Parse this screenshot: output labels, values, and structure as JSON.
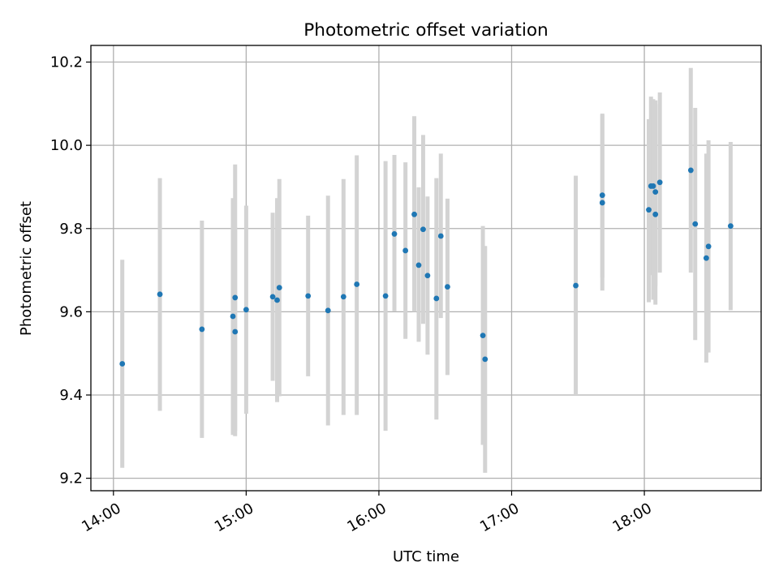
{
  "chart_data": {
    "type": "scatter",
    "title": "Photometric offset variation",
    "xlabel": "UTC time",
    "ylabel": "Photometric offset",
    "x_axis_kind": "time (hours)",
    "xlim": [
      13.83,
      18.88
    ],
    "ylim": [
      9.17,
      10.24
    ],
    "x_ticks": [
      {
        "value": 14,
        "label": "14:00"
      },
      {
        "value": 15,
        "label": "15:00"
      },
      {
        "value": 16,
        "label": "16:00"
      },
      {
        "value": 17,
        "label": "17:00"
      },
      {
        "value": 18,
        "label": "18:00"
      }
    ],
    "y_ticks": [
      {
        "value": 9.2,
        "label": "9.2"
      },
      {
        "value": 9.4,
        "label": "9.4"
      },
      {
        "value": 9.6,
        "label": "9.6"
      },
      {
        "value": 9.8,
        "label": "9.8"
      },
      {
        "value": 10.0,
        "label": "10.0"
      },
      {
        "value": 10.2,
        "label": "10.2"
      }
    ],
    "grid": true,
    "marker_color": "#1f77b4",
    "errorbar_color": "#d3d3d3",
    "series": [
      {
        "points": [
          {
            "x": "14:04",
            "y": 9.475,
            "ylow": 9.225,
            "yhigh": 9.725
          },
          {
            "x": "14:21",
            "y": 9.642,
            "ylow": 9.362,
            "yhigh": 9.921
          },
          {
            "x": "14:40",
            "y": 9.558,
            "ylow": 9.297,
            "yhigh": 9.819
          },
          {
            "x": "14:54",
            "y": 9.589,
            "ylow": 9.304,
            "yhigh": 9.873
          },
          {
            "x": "14:55",
            "y": 9.634,
            "ylow": 9.314,
            "yhigh": 9.954
          },
          {
            "x": "14:55",
            "y": 9.552,
            "ylow": 9.301,
            "yhigh": 9.804
          },
          {
            "x": "15:00",
            "y": 9.605,
            "ylow": 9.355,
            "yhigh": 9.855
          },
          {
            "x": "15:12",
            "y": 9.636,
            "ylow": 9.434,
            "yhigh": 9.838
          },
          {
            "x": "15:14",
            "y": 9.628,
            "ylow": 9.383,
            "yhigh": 9.873
          },
          {
            "x": "15:15",
            "y": 9.658,
            "ylow": 9.397,
            "yhigh": 9.919
          },
          {
            "x": "15:28",
            "y": 9.638,
            "ylow": 9.445,
            "yhigh": 9.831
          },
          {
            "x": "15:37",
            "y": 9.603,
            "ylow": 9.327,
            "yhigh": 9.879
          },
          {
            "x": "15:44",
            "y": 9.636,
            "ylow": 9.352,
            "yhigh": 9.919
          },
          {
            "x": "15:50",
            "y": 9.666,
            "ylow": 9.352,
            "yhigh": 9.976
          },
          {
            "x": "16:03",
            "y": 9.638,
            "ylow": 9.314,
            "yhigh": 9.962
          },
          {
            "x": "16:07",
            "y": 9.787,
            "ylow": 9.601,
            "yhigh": 9.977
          },
          {
            "x": "16:12",
            "y": 9.747,
            "ylow": 9.535,
            "yhigh": 9.959
          },
          {
            "x": "16:16",
            "y": 9.834,
            "ylow": 9.6,
            "yhigh": 10.07
          },
          {
            "x": "16:18",
            "y": 9.712,
            "ylow": 9.528,
            "yhigh": 9.899
          },
          {
            "x": "16:20",
            "y": 9.798,
            "ylow": 9.571,
            "yhigh": 10.025
          },
          {
            "x": "16:22",
            "y": 9.687,
            "ylow": 9.497,
            "yhigh": 9.877
          },
          {
            "x": "16:26",
            "y": 9.632,
            "ylow": 9.341,
            "yhigh": 9.921
          },
          {
            "x": "16:28",
            "y": 9.782,
            "ylow": 9.585,
            "yhigh": 9.98
          },
          {
            "x": "16:31",
            "y": 9.66,
            "ylow": 9.448,
            "yhigh": 9.872
          },
          {
            "x": "16:47",
            "y": 9.543,
            "ylow": 9.28,
            "yhigh": 9.806
          },
          {
            "x": "16:48",
            "y": 9.486,
            "ylow": 9.213,
            "yhigh": 9.758
          },
          {
            "x": "17:29",
            "y": 9.663,
            "ylow": 9.4,
            "yhigh": 9.927
          },
          {
            "x": "17:41",
            "y": 9.862,
            "ylow": 9.651,
            "yhigh": 10.073
          },
          {
            "x": "17:41",
            "y": 9.88,
            "ylow": 9.682,
            "yhigh": 10.076
          },
          {
            "x": "18:02",
            "y": 9.845,
            "ylow": 9.623,
            "yhigh": 10.063
          },
          {
            "x": "18:03",
            "y": 9.902,
            "ylow": 9.688,
            "yhigh": 10.117
          },
          {
            "x": "18:04",
            "y": 9.902,
            "ylow": 9.629,
            "yhigh": 10.111
          },
          {
            "x": "18:05",
            "y": 9.834,
            "ylow": 9.617,
            "yhigh": 10.099
          },
          {
            "x": "18:05",
            "y": 9.888,
            "ylow": 9.662,
            "yhigh": 10.108
          },
          {
            "x": "18:07",
            "y": 9.911,
            "ylow": 9.694,
            "yhigh": 10.127
          },
          {
            "x": "18:21",
            "y": 9.94,
            "ylow": 9.694,
            "yhigh": 10.186
          },
          {
            "x": "18:23",
            "y": 9.811,
            "ylow": 9.532,
            "yhigh": 10.09
          },
          {
            "x": "18:28",
            "y": 9.729,
            "ylow": 9.478,
            "yhigh": 9.98
          },
          {
            "x": "18:29",
            "y": 9.757,
            "ylow": 9.502,
            "yhigh": 10.012
          },
          {
            "x": "18:39",
            "y": 9.806,
            "ylow": 9.604,
            "yhigh": 10.008
          }
        ]
      }
    ]
  }
}
